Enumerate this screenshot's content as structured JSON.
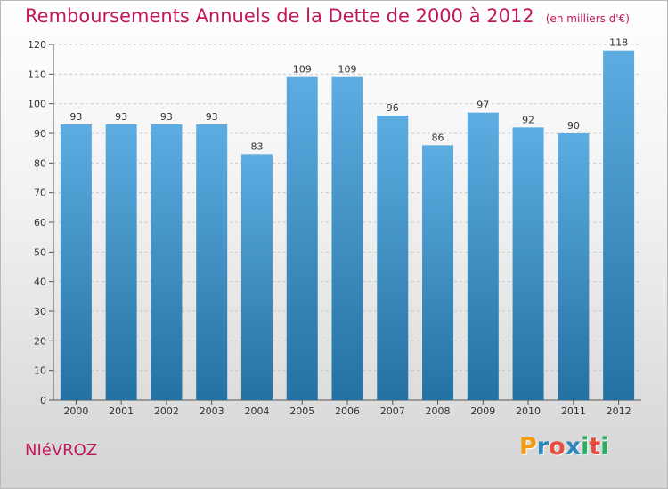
{
  "title": "Remboursements Annuels de la Dette de 2000 à 2012",
  "subtitle": "(en milliers d'€)",
  "commune": "NIéVROZ",
  "brand": {
    "letters": [
      "P",
      "r",
      "o",
      "x",
      "i",
      "t",
      "i"
    ],
    "colors": [
      "#f39c12",
      "#2e86c1",
      "#e74c3c",
      "#2e86c1",
      "#27ae60",
      "#e74c3c",
      "#27ae60"
    ]
  },
  "colors": {
    "bar_top": "#5dade2",
    "bar_bottom": "#2471a3",
    "accent": "#c2185b"
  },
  "chart_data": {
    "type": "bar",
    "title": "Remboursements Annuels de la Dette de 2000 à 2012",
    "subtitle": "(en milliers d'€)",
    "categories": [
      "2000",
      "2001",
      "2002",
      "2003",
      "2004",
      "2005",
      "2006",
      "2007",
      "2008",
      "2009",
      "2010",
      "2011",
      "2012"
    ],
    "values": [
      93,
      93,
      93,
      93,
      83,
      109,
      109,
      96,
      86,
      97,
      92,
      90,
      118
    ],
    "ylim": [
      0,
      120
    ],
    "yticks": [
      0,
      10,
      20,
      30,
      40,
      50,
      60,
      70,
      80,
      90,
      100,
      110,
      120
    ],
    "grid": true,
    "legend": "none"
  }
}
